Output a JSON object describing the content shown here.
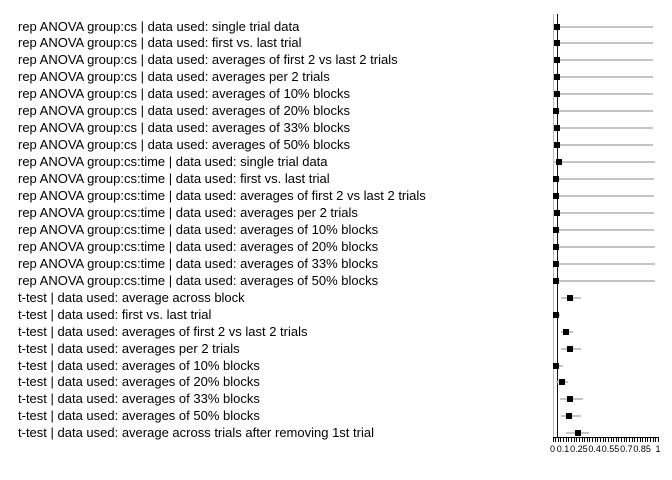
{
  "figure": {
    "background": "#ffffff",
    "text_color": "#000000",
    "interval_color": "#c4c4c4",
    "marker_color": "#000000"
  },
  "chart_data": {
    "type": "scatter",
    "subtype": "forest-dot-plot-with-intervals",
    "title": "",
    "xlabel": "",
    "ylabel": "",
    "xlim": [
      0,
      1
    ],
    "grid": false,
    "legend": false,
    "minor_tick_step": 0.025,
    "x_tick_labels": [
      "0",
      "0.1",
      "0.25",
      "0.4",
      "0.55",
      "0.7",
      "0.85",
      "1"
    ],
    "x_tick_label_values": [
      0,
      0.1,
      0.25,
      0.4,
      0.55,
      0.7,
      0.85,
      1
    ],
    "reference_lines": [
      {
        "name": "zero-reference-line",
        "value": 0,
        "color": "#bbbbbb"
      },
      {
        "name": "alpha-0-05-reference-line",
        "value": 0.043,
        "color": "#111111"
      }
    ],
    "rows": [
      {
        "label": "rep ANOVA group:cs | data used: single trial data",
        "value": 0.04,
        "lo": 0.005,
        "hi": 0.955
      },
      {
        "label": "rep ANOVA group:cs | data used: first vs. last trial",
        "value": 0.04,
        "lo": 0.005,
        "hi": 0.95
      },
      {
        "label": "rep ANOVA group:cs | data used: averages of first 2 vs last 2 trials",
        "value": 0.04,
        "lo": 0.005,
        "hi": 0.955
      },
      {
        "label": "rep ANOVA group:cs | data used: averages per 2 trials",
        "value": 0.04,
        "lo": 0.005,
        "hi": 0.955
      },
      {
        "label": "rep ANOVA group:cs | data used: averages of 10% blocks",
        "value": 0.04,
        "lo": 0.005,
        "hi": 0.95
      },
      {
        "label": "rep ANOVA group:cs | data used: averages of 20% blocks",
        "value": 0.03,
        "lo": 0.005,
        "hi": 0.95
      },
      {
        "label": "rep ANOVA group:cs | data used: averages of 33% blocks",
        "value": 0.04,
        "lo": 0.005,
        "hi": 0.955
      },
      {
        "label": "rep ANOVA group:cs | data used: averages of 50% blocks",
        "value": 0.04,
        "lo": 0.005,
        "hi": 0.95
      },
      {
        "label": "rep ANOVA group:cs:time | data used: single trial data",
        "value": 0.06,
        "lo": 0.005,
        "hi": 0.97
      },
      {
        "label": "rep ANOVA group:cs:time | data used: first vs. last trial",
        "value": 0.03,
        "lo": 0.005,
        "hi": 0.96
      },
      {
        "label": "rep ANOVA group:cs:time | data used: averages of first 2 vs last 2 trials",
        "value": 0.03,
        "lo": 0.005,
        "hi": 0.96
      },
      {
        "label": "rep ANOVA group:cs:time | data used: averages per 2 trials",
        "value": 0.04,
        "lo": 0.005,
        "hi": 0.96
      },
      {
        "label": "rep ANOVA group:cs:time | data used: averages of 10% blocks",
        "value": 0.03,
        "lo": 0.005,
        "hi": 0.96
      },
      {
        "label": "rep ANOVA group:cs:time | data used: averages of 20% blocks",
        "value": 0.03,
        "lo": 0.005,
        "hi": 0.97
      },
      {
        "label": "rep ANOVA group:cs:time | data used: averages of 33% blocks",
        "value": 0.03,
        "lo": 0.005,
        "hi": 0.97
      },
      {
        "label": "rep ANOVA group:cs:time | data used: averages of 50% blocks",
        "value": 0.03,
        "lo": 0.005,
        "hi": 0.97
      },
      {
        "label": "t-test | data used: average across block",
        "value": 0.17,
        "lo": 0.08,
        "hi": 0.27
      },
      {
        "label": "t-test | data used: first vs. last trial",
        "value": 0.03,
        "lo": 0.0,
        "hi": 0.07
      },
      {
        "label": "t-test | data used: averages of first 2 vs last 2 trials",
        "value": 0.13,
        "lo": 0.08,
        "hi": 0.19
      },
      {
        "label": "t-test | data used: averages per 2 trials",
        "value": 0.17,
        "lo": 0.08,
        "hi": 0.27
      },
      {
        "label": "t-test | data used: averages of 10% blocks",
        "value": 0.03,
        "lo": 0.0,
        "hi": 0.1
      },
      {
        "label": "t-test | data used: averages of 20% blocks",
        "value": 0.09,
        "lo": 0.035,
        "hi": 0.15
      },
      {
        "label": "t-test | data used: averages of 33% blocks",
        "value": 0.17,
        "lo": 0.07,
        "hi": 0.29
      },
      {
        "label": "t-test | data used: averages of 50% blocks",
        "value": 0.16,
        "lo": 0.08,
        "hi": 0.27
      },
      {
        "label": "t-test | data used: average across trials after removing 1st trial",
        "value": 0.24,
        "lo": 0.13,
        "hi": 0.35
      }
    ]
  }
}
